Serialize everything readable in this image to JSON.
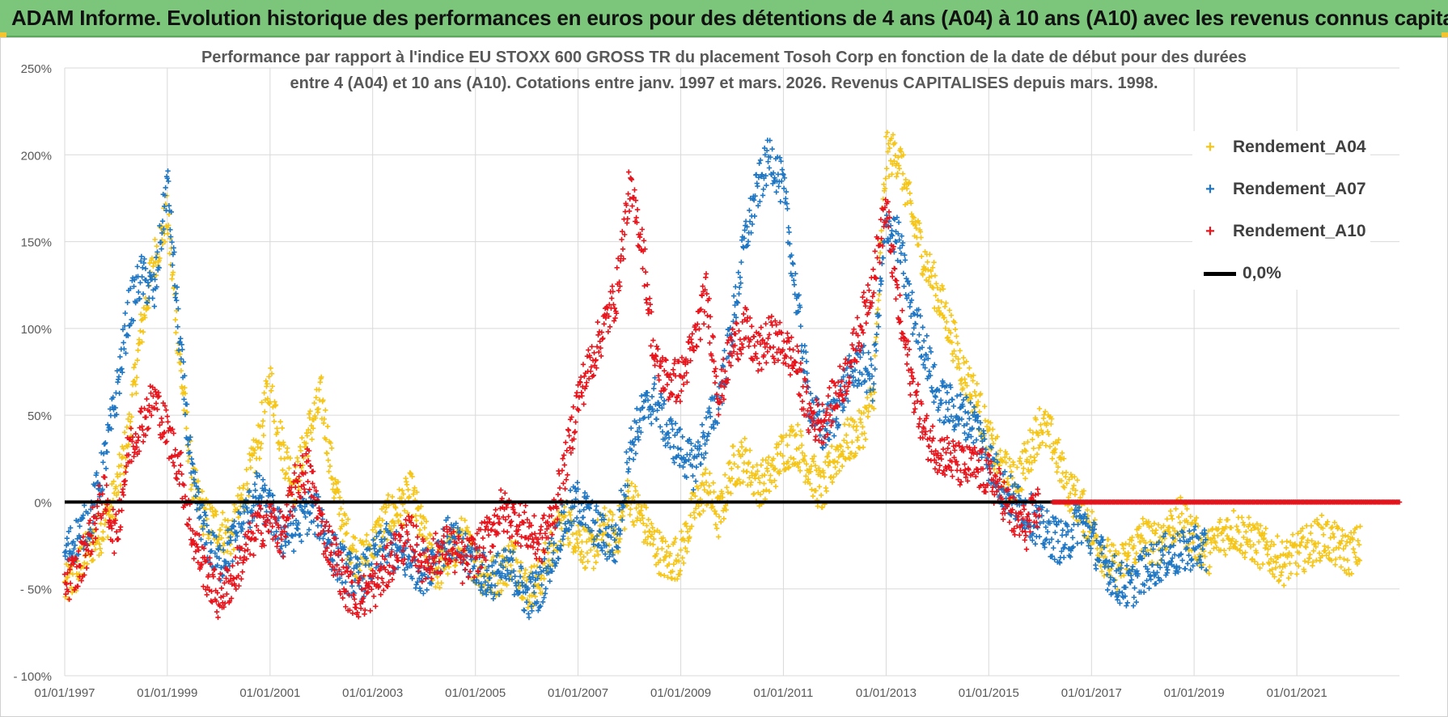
{
  "header": {
    "title": "ADAM Informe. Evolution historique des performances en euros pour des détentions de 4 ans (A04) à 10 ans (A10) avec les revenus connus capitalisés"
  },
  "colors": {
    "banner": "#7cc67c",
    "A04": "#f5c518",
    "A07": "#1f77c4",
    "A10": "#e8141c",
    "zero": "#000000",
    "grid": "#d9d9d9"
  },
  "chart_data": {
    "type": "scatter",
    "title_lines": [
      "Performance par rapport à l'indice EU STOXX 600 GROSS TR  du placement Tosoh Corp en fonction de la date de début pour des durées",
      "entre 4 (A04) et 10 ans (A10).  Cotations entre janv. 1997 et mars. 2026.  Revenus CAPITALISES depuis mars. 1998."
    ],
    "xlabel": "",
    "ylabel": "",
    "x_range": [
      "1997-01-01",
      "2023-01-01"
    ],
    "ylim": [
      -100,
      250
    ],
    "y_ticks": [
      -100,
      -50,
      0,
      50,
      100,
      150,
      200,
      250
    ],
    "y_tick_labels": [
      "- 100%",
      "- 50%",
      "0%",
      "50%",
      "100%",
      "150%",
      "200%",
      "250%"
    ],
    "x_ticks": [
      "1997-01-01",
      "1999-01-01",
      "2001-01-01",
      "2003-01-01",
      "2005-01-01",
      "2007-01-01",
      "2009-01-01",
      "2011-01-01",
      "2013-01-01",
      "2015-01-01",
      "2017-01-01",
      "2019-01-01",
      "2021-01-01"
    ],
    "x_tick_labels": [
      "01/01/1997",
      "01/01/1999",
      "01/01/2001",
      "01/01/2003",
      "01/01/2005",
      "01/01/2007",
      "01/01/2009",
      "01/01/2011",
      "01/01/2013",
      "01/01/2015",
      "01/01/2017",
      "01/01/2019",
      "01/01/2021"
    ],
    "grid": true,
    "legend_position": "top-right",
    "marker": "+",
    "reference_line": {
      "name": "0,0%",
      "value": 0
    },
    "series": [
      {
        "name": "Rendement_A04",
        "color": "#f5c518",
        "dates": [
          "1997-01",
          "1997-04",
          "1997-07",
          "1997-10",
          "1998-01",
          "1998-04",
          "1998-07",
          "1998-10",
          "1999-01",
          "1999-04",
          "1999-07",
          "1999-10",
          "2000-01",
          "2000-04",
          "2000-07",
          "2000-10",
          "2001-01",
          "2001-04",
          "2001-07",
          "2001-10",
          "2002-01",
          "2002-04",
          "2002-07",
          "2002-10",
          "2003-01",
          "2003-04",
          "2003-07",
          "2003-10",
          "2004-01",
          "2004-04",
          "2004-07",
          "2004-10",
          "2005-01",
          "2005-04",
          "2005-07",
          "2005-10",
          "2006-01",
          "2006-04",
          "2006-07",
          "2006-10",
          "2007-01",
          "2007-04",
          "2007-07",
          "2007-10",
          "2008-01",
          "2008-04",
          "2008-07",
          "2008-10",
          "2009-01",
          "2009-04",
          "2009-07",
          "2009-10",
          "2010-01",
          "2010-04",
          "2010-07",
          "2010-10",
          "2011-01",
          "2011-04",
          "2011-07",
          "2011-10",
          "2012-01",
          "2012-04",
          "2012-07",
          "2012-10",
          "2013-01",
          "2013-04",
          "2013-07",
          "2013-10",
          "2014-01",
          "2014-04",
          "2014-07",
          "2014-10",
          "2015-01",
          "2015-04",
          "2015-07",
          "2015-10",
          "2016-01",
          "2016-04",
          "2016-07",
          "2016-10",
          "2017-01",
          "2017-04",
          "2017-07",
          "2017-10",
          "2018-01",
          "2018-04",
          "2018-07",
          "2018-10",
          "2019-01",
          "2019-04",
          "2019-07",
          "2019-10",
          "2020-01",
          "2020-04",
          "2020-07",
          "2020-10",
          "2021-01",
          "2021-04",
          "2021-07",
          "2021-10",
          "2022-01",
          "2022-04"
        ],
        "values": [
          -50,
          -40,
          -25,
          -15,
          5,
          40,
          100,
          140,
          165,
          80,
          10,
          -10,
          -15,
          -20,
          5,
          30,
          70,
          30,
          10,
          40,
          60,
          10,
          -20,
          -35,
          -25,
          -10,
          -5,
          5,
          -20,
          -40,
          -30,
          -20,
          -35,
          -45,
          -40,
          -30,
          -50,
          -45,
          -25,
          -10,
          -20,
          -30,
          -15,
          -20,
          5,
          -10,
          -25,
          -35,
          -30,
          -5,
          10,
          -10,
          20,
          25,
          10,
          15,
          30,
          35,
          20,
          5,
          25,
          35,
          40,
          60,
          200,
          200,
          165,
          140,
          120,
          100,
          75,
          60,
          35,
          20,
          10,
          25,
          45,
          35,
          10,
          0,
          -15,
          -30,
          -40,
          -30,
          -20,
          -25,
          -15,
          -10,
          -20,
          -30,
          -20,
          -15,
          -20,
          -25,
          -30,
          -35,
          -30,
          -25,
          -20,
          -25,
          -30,
          -25
        ],
        "last_values_approx": [
          -20,
          -25
        ]
      },
      {
        "name": "Rendement_A07",
        "color": "#1f77c4",
        "dates": [
          "1997-01",
          "1997-04",
          "1997-07",
          "1997-10",
          "1998-01",
          "1998-04",
          "1998-07",
          "1998-10",
          "1999-01",
          "1999-04",
          "1999-07",
          "1999-10",
          "2000-01",
          "2000-04",
          "2000-07",
          "2000-10",
          "2001-01",
          "2001-04",
          "2001-07",
          "2001-10",
          "2002-01",
          "2002-04",
          "2002-07",
          "2002-10",
          "2003-01",
          "2003-04",
          "2003-07",
          "2003-10",
          "2004-01",
          "2004-04",
          "2004-07",
          "2004-10",
          "2005-01",
          "2005-04",
          "2005-07",
          "2005-10",
          "2006-01",
          "2006-04",
          "2006-07",
          "2006-10",
          "2007-01",
          "2007-04",
          "2007-07",
          "2007-10",
          "2008-01",
          "2008-04",
          "2008-07",
          "2008-10",
          "2009-01",
          "2009-04",
          "2009-07",
          "2009-10",
          "2010-01",
          "2010-04",
          "2010-07",
          "2010-10",
          "2011-01",
          "2011-04",
          "2011-07",
          "2011-10",
          "2012-01",
          "2012-04",
          "2012-07",
          "2012-10",
          "2013-01",
          "2013-04",
          "2013-07",
          "2013-10",
          "2014-01",
          "2014-04",
          "2014-07",
          "2014-10",
          "2015-01",
          "2015-04",
          "2015-07",
          "2015-10",
          "2016-01",
          "2016-04",
          "2016-07",
          "2016-10",
          "2017-01",
          "2017-04",
          "2017-07",
          "2017-10",
          "2018-01",
          "2018-04",
          "2018-07",
          "2018-10",
          "2019-01",
          "2019-04"
        ],
        "values": [
          -30,
          -20,
          -10,
          20,
          60,
          110,
          130,
          120,
          185,
          90,
          10,
          -20,
          -35,
          -25,
          -10,
          5,
          -5,
          -20,
          -15,
          -5,
          -10,
          -30,
          -40,
          -45,
          -35,
          -25,
          -30,
          -35,
          -40,
          -30,
          -20,
          -30,
          -35,
          -45,
          -40,
          -40,
          -55,
          -50,
          -30,
          -10,
          0,
          -10,
          -20,
          -25,
          30,
          50,
          60,
          40,
          30,
          20,
          40,
          60,
          100,
          150,
          180,
          200,
          180,
          120,
          60,
          40,
          50,
          70,
          80,
          70,
          160,
          150,
          110,
          90,
          60,
          55,
          50,
          45,
          25,
          10,
          0,
          -5,
          -15,
          -20,
          -25,
          -10,
          -20,
          -35,
          -45,
          -50,
          -40,
          -35,
          -30,
          -30,
          -25,
          -30
        ]
      },
      {
        "name": "Rendement_A10",
        "color": "#e8141c",
        "dates": [
          "1997-01",
          "1997-04",
          "1997-07",
          "1997-10",
          "1998-01",
          "1998-04",
          "1998-07",
          "1998-10",
          "1999-01",
          "1999-04",
          "1999-07",
          "1999-10",
          "2000-01",
          "2000-04",
          "2000-07",
          "2000-10",
          "2001-01",
          "2001-04",
          "2001-07",
          "2001-10",
          "2002-01",
          "2002-04",
          "2002-07",
          "2002-10",
          "2003-01",
          "2003-04",
          "2003-07",
          "2003-10",
          "2004-01",
          "2004-04",
          "2004-07",
          "2004-10",
          "2005-01",
          "2005-04",
          "2005-07",
          "2005-10",
          "2006-01",
          "2006-04",
          "2006-07",
          "2006-10",
          "2007-01",
          "2007-04",
          "2007-07",
          "2007-10",
          "2008-01",
          "2008-04",
          "2008-07",
          "2008-10",
          "2009-01",
          "2009-04",
          "2009-07",
          "2009-10",
          "2010-01",
          "2010-04",
          "2010-07",
          "2010-10",
          "2011-01",
          "2011-04",
          "2011-07",
          "2011-10",
          "2012-01",
          "2012-04",
          "2012-07",
          "2012-10",
          "2013-01",
          "2013-04",
          "2013-07",
          "2013-10",
          "2014-01",
          "2014-04",
          "2014-07",
          "2014-10",
          "2015-01",
          "2015-04",
          "2015-07",
          "2015-10",
          "2016-01"
        ],
        "values": [
          -45,
          -40,
          -20,
          5,
          -20,
          30,
          45,
          60,
          40,
          20,
          -20,
          -40,
          -55,
          -45,
          -30,
          -15,
          -10,
          -20,
          10,
          20,
          -15,
          -30,
          -50,
          -55,
          -50,
          -40,
          -25,
          -20,
          -35,
          -30,
          -25,
          -35,
          -30,
          -20,
          -5,
          -10,
          -15,
          -25,
          -10,
          20,
          60,
          80,
          100,
          120,
          180,
          150,
          80,
          70,
          70,
          90,
          120,
          60,
          90,
          100,
          85,
          95,
          90,
          80,
          50,
          45,
          60,
          75,
          100,
          130,
          170,
          110,
          70,
          40,
          30,
          25,
          20,
          20,
          15,
          5,
          -10,
          -15,
          0
        ],
        "after_2016_value": 0
      }
    ]
  },
  "legend": {
    "items": [
      {
        "label": "Rendement_A04",
        "symbol": "+"
      },
      {
        "label": "Rendement_A07",
        "symbol": "+"
      },
      {
        "label": "Rendement_A10",
        "symbol": "+"
      },
      {
        "label": "0,0%",
        "symbol": "line"
      }
    ]
  }
}
